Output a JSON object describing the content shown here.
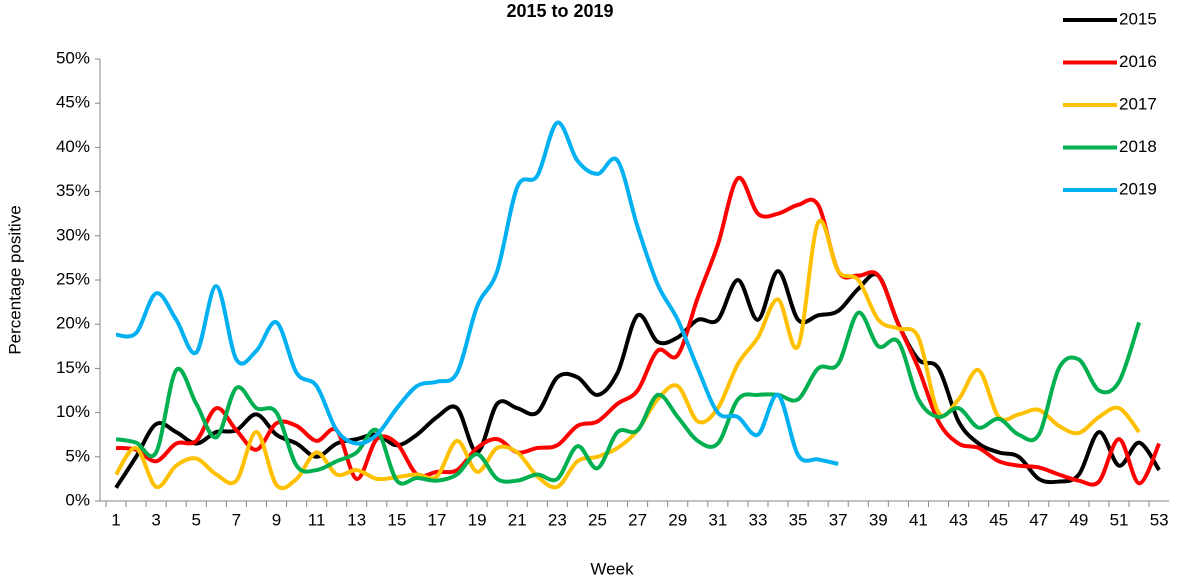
{
  "chart_data": {
    "type": "line",
    "title": "2015 to 2019",
    "x_label": "Week",
    "y_label": "Percentage positive",
    "categories": [
      "1",
      null,
      "3",
      null,
      "5",
      null,
      "7",
      null,
      "9",
      null,
      "11",
      null,
      "13",
      null,
      "15",
      null,
      "17",
      null,
      "19",
      null,
      "21",
      null,
      "23",
      null,
      "25",
      null,
      "27",
      null,
      "29",
      null,
      "31",
      null,
      "33",
      null,
      "35",
      null,
      "37",
      null,
      "39",
      null,
      "41",
      null,
      "43",
      null,
      "45",
      null,
      "47",
      null,
      "49",
      null,
      "51",
      null,
      "53"
    ],
    "ylim": [
      0,
      50
    ],
    "yticks": [
      {
        "value": 0,
        "label": "0%"
      },
      {
        "value": 5,
        "label": "5%"
      },
      {
        "value": 10,
        "label": "10%"
      },
      {
        "value": 15,
        "label": "15%"
      },
      {
        "value": 20,
        "label": "20%"
      },
      {
        "value": 25,
        "label": "25%"
      },
      {
        "value": 30,
        "label": "30%"
      },
      {
        "value": 35,
        "label": "35%"
      },
      {
        "value": 40,
        "label": "40%"
      },
      {
        "value": 45,
        "label": "45%"
      },
      {
        "value": 50,
        "label": "50%"
      }
    ],
    "grid": false,
    "legend": "top-right",
    "series": [
      {
        "name": "2015",
        "color": "#000000",
        "values": [
          1.5,
          5,
          8.7,
          7.8,
          6.5,
          7.8,
          8,
          9.8,
          7.5,
          6.5,
          5,
          6.5,
          7,
          7.5,
          6.3,
          7.5,
          9.5,
          10.5,
          5.5,
          11,
          10.5,
          10,
          14,
          14,
          12,
          14.5,
          21,
          18,
          18.5,
          20.5,
          20.5,
          25,
          20.5,
          26,
          20.5,
          21,
          21.5,
          24,
          25.5,
          20,
          16,
          15,
          9,
          6.5,
          5.5,
          5,
          2.5,
          2.2,
          3,
          7.8,
          4,
          6.6,
          3.5
        ]
      },
      {
        "name": "2016",
        "color": "#ff0000",
        "values": [
          6,
          5.8,
          4.5,
          6.5,
          6.8,
          10.5,
          8,
          5.8,
          8.8,
          8.5,
          6.8,
          8,
          2.5,
          7,
          6.5,
          3,
          3.3,
          3.5,
          6,
          7,
          5.5,
          6,
          6.3,
          8.5,
          9,
          11,
          12.5,
          17,
          16.5,
          23,
          29,
          36.5,
          32.5,
          32.5,
          33.5,
          33.5,
          26,
          25.5,
          25.5,
          20,
          15,
          9,
          6.5,
          6,
          4.5,
          4,
          3.8,
          3,
          2.3,
          2.2,
          7,
          2,
          6.5
        ]
      },
      {
        "name": "2017",
        "color": "#ffc000",
        "values": [
          3,
          6,
          1.6,
          4,
          4.8,
          3,
          2.3,
          7.8,
          1.8,
          2.5,
          5.5,
          3,
          3.5,
          2.5,
          2.7,
          3,
          2.8,
          6.8,
          3.3,
          6,
          5.5,
          2.8,
          1.6,
          4.5,
          5,
          6,
          8,
          11.5,
          13,
          9,
          10.5,
          15.5,
          18.5,
          22.8,
          17.5,
          31.5,
          26,
          25,
          20.5,
          19.5,
          18.5,
          10,
          11.5,
          14.8,
          9.5,
          9.8,
          10.3,
          8.5,
          7.7,
          9.5,
          10.5,
          7.8,
          null
        ]
      },
      {
        "name": "2018",
        "color": "#00b050",
        "values": [
          7,
          6.6,
          5.5,
          14.8,
          11,
          7.2,
          12.8,
          10.5,
          10,
          4,
          3.5,
          4.5,
          5.5,
          8,
          2.3,
          2.6,
          2.3,
          3,
          5.3,
          2.5,
          2.3,
          3,
          2.5,
          6.2,
          3.7,
          7.8,
          8,
          12,
          9.5,
          6.8,
          6.5,
          11.5,
          12,
          12,
          11.5,
          15,
          15.5,
          21.3,
          17.5,
          18,
          11.5,
          9.5,
          10.5,
          8.3,
          9.3,
          7.5,
          7.5,
          15,
          16,
          12.5,
          13.5,
          20.2,
          null
        ]
      },
      {
        "name": "2019",
        "color": "#00b0f0",
        "values": [
          18.8,
          19,
          23.5,
          20.5,
          16.8,
          24.3,
          16,
          17,
          20.2,
          14.5,
          13,
          8,
          6.5,
          7.5,
          10.5,
          13,
          13.5,
          14.5,
          22,
          26,
          35.5,
          36.8,
          42.8,
          38.5,
          37,
          38.5,
          31,
          24.5,
          20.5,
          15,
          10,
          9.5,
          7.5,
          12,
          5.2,
          4.7,
          4.2,
          null,
          null,
          null,
          null,
          null,
          null,
          null,
          null,
          null,
          null,
          null,
          null,
          null,
          null,
          null,
          null
        ]
      }
    ]
  }
}
